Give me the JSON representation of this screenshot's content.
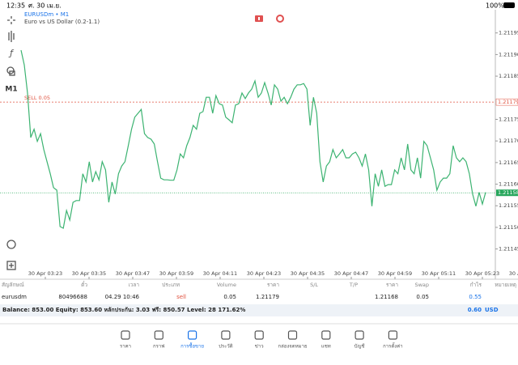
{
  "status_bar": {
    "time": "12:35",
    "date": "ศ. 30 เม.ย.",
    "battery": "100%"
  },
  "toolbar": {
    "timeframe": "M1"
  },
  "chart_data": {
    "type": "line",
    "title": "EURUSDm • M1",
    "subtitle": "Euro vs US Dollar (0.2-1.1)",
    "color": "#3cb371",
    "values": [
      1.21191,
      1.211876,
      1.211811,
      1.211708,
      1.211727,
      1.211699,
      1.211717,
      1.21168,
      1.211652,
      1.211624,
      1.211592,
      1.211586,
      1.211502,
      1.211498,
      1.211539,
      1.211517,
      1.211558,
      1.211562,
      1.211562,
      1.211624,
      1.211605,
      1.211652,
      1.211605,
      1.211629,
      1.21161,
      1.211652,
      1.211633,
      1.211558,
      1.211605,
      1.211577,
      1.211624,
      1.211642,
      1.211652,
      1.211689,
      1.211727,
      1.211755,
      1.211764,
      1.211773,
      1.211717,
      1.211708,
      1.211704,
      1.211693,
      1.211652,
      1.211614,
      1.21161,
      1.21161,
      1.211609,
      1.211609,
      1.211633,
      1.21167,
      1.211661,
      1.211689,
      1.211708,
      1.211736,
      1.211727,
      1.211764,
      1.211768,
      1.211801,
      1.211801,
      1.211764,
      1.211805,
      1.211786,
      1.211783,
      1.211755,
      1.211749,
      1.211742,
      1.211783,
      1.211786,
      1.211811,
      1.211798,
      1.211811,
      1.21182,
      1.211839,
      1.211801,
      1.211811,
      1.211835,
      1.211811,
      1.211783,
      1.21183,
      1.21182,
      1.211792,
      1.211801,
      1.211786,
      1.211801,
      1.21182,
      1.21183,
      1.21183,
      1.211833,
      1.21182,
      1.211736,
      1.211801,
      1.211764,
      1.211652,
      1.211605,
      1.211642,
      1.211652,
      1.21168,
      1.211661,
      1.21167,
      1.21168,
      1.211661,
      1.211661,
      1.21167,
      1.211674,
      1.211661,
      1.211642,
      1.21167,
      1.211633,
      1.211549,
      1.211624,
      1.211595,
      1.211633,
      1.211595,
      1.211599,
      1.211599,
      1.211633,
      1.211624,
      1.211661,
      1.211633,
      1.211693,
      1.211633,
      1.211624,
      1.211661,
      1.211614,
      1.211699,
      1.211689,
      1.211661,
      1.211633,
      1.211586,
      1.211605,
      1.211614,
      1.211614,
      1.211624,
      1.211689,
      1.211661,
      1.211652,
      1.211661,
      1.211652,
      1.211624,
      1.211577,
      1.211549,
      1.211581,
      1.211554,
      1.211581
    ],
    "ylim": [
      1.21138,
      1.212
    ],
    "yticks": [
      1.21195,
      {
        "value": 1.2119,
        "label": "1.21190"
      },
      1.21185,
      1.21175,
      {
        "value": 1.2117,
        "label": "1.21170"
      },
      1.21165,
      {
        "value": 1.2116,
        "label": "1.21160"
      },
      1.21155,
      {
        "value": 1.2115,
        "label": "1.21150"
      },
      1.21145
    ],
    "x_labels": [
      "30 Apr 03:23",
      "30 Apr 03:35",
      "30 Apr 03:47",
      "30 Apr 03:59",
      "30 Apr 04:11",
      "30 Apr 04:23",
      "30 Apr 04:35",
      "30 Apr 04:47",
      "30 Apr 04:59",
      "30 Apr 05:11",
      "30 Apr 05:23",
      "30 Apr 05:35"
    ],
    "order_line": {
      "label": "SELL 0.05",
      "value": 1.21179,
      "color": "#e0523f"
    },
    "price_line": {
      "value": 1.21158,
      "color": "#26a65b"
    }
  },
  "table": {
    "headers": [
      "สัญลักษณ์",
      "ตั๋ว",
      "เวลา",
      "ประเภท",
      "Volume",
      "ราคา",
      "S/L",
      "T/P",
      "ราคา",
      "Swap",
      "กำไร",
      "หมายเหตุ"
    ],
    "rows": [
      [
        "eurusdm",
        "80496688",
        "04.29 10:46",
        "sell",
        "0.05",
        "1.21179",
        "",
        "",
        "1.21168",
        "0.05",
        "0.55",
        ""
      ]
    ]
  },
  "balance": {
    "text": "Balance: 853.00 Equity: 853.60 หลักประกัน: 3.03 ฟรี: 850.57 Level: 28 171.62%",
    "profit": "0.60",
    "currency": "USD"
  },
  "nav": [
    "ราคา",
    "กราฟ",
    "การซื้อขาย",
    "ประวัติ",
    "ข่าว",
    "กล่องจดหมาย",
    "แชท",
    "บัญชี",
    "การตั้งค่า"
  ]
}
